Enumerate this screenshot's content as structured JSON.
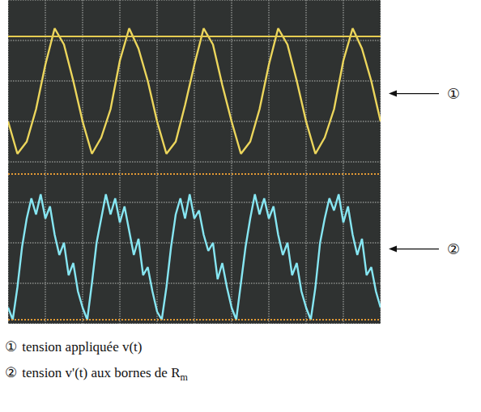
{
  "chart_data": {
    "type": "line",
    "xlim": [
      0,
      10
    ],
    "xticks": [
      0,
      1,
      2,
      3,
      4,
      5,
      6,
      7,
      8,
      9,
      10
    ],
    "ylim": [
      0,
      8
    ],
    "yticks": [
      0,
      1,
      2,
      3,
      4,
      5,
      6,
      7,
      8
    ],
    "grid": true,
    "tick_labels": false,
    "series": [
      {
        "name": "tension appliquée v(t)",
        "color": "#ecd65c",
        "x": [
          0,
          0.25,
          0.5,
          0.75,
          1,
          1.25,
          1.5,
          1.75,
          2,
          2.25,
          2.5,
          2.75,
          3,
          3.25,
          3.5,
          3.75,
          4,
          4.25,
          4.5,
          4.75,
          5,
          5.25,
          5.5,
          5.75,
          6,
          6.25,
          6.5,
          6.75,
          7,
          7.25,
          7.5,
          7.75,
          8,
          8.25,
          8.5,
          8.75,
          9,
          9.25,
          9.5,
          9.75,
          10
        ],
        "values": [
          5.0,
          4.2,
          4.5,
          5.3,
          6.4,
          7.3,
          6.9,
          6.0,
          5.0,
          4.2,
          4.6,
          5.3,
          6.5,
          7.3,
          6.8,
          6.0,
          5.0,
          4.2,
          4.5,
          5.4,
          6.4,
          7.3,
          6.9,
          5.9,
          5.0,
          4.2,
          4.5,
          5.3,
          6.4,
          7.3,
          6.9,
          6.0,
          5.0,
          4.2,
          4.6,
          5.3,
          6.5,
          7.3,
          6.8,
          6.0,
          5.0
        ]
      },
      {
        "name": "tension v'(t) aux bornes de Rm",
        "color": "#86e6f2",
        "x": [
          0,
          0.125,
          0.25,
          0.375,
          0.5,
          0.625,
          0.75,
          0.875,
          1,
          1.125,
          1.25,
          1.375,
          1.5,
          1.625,
          1.75,
          1.875,
          2,
          2.125,
          2.25,
          2.375,
          2.5,
          2.625,
          2.75,
          2.875,
          3,
          3.125,
          3.25,
          3.375,
          3.5,
          3.625,
          3.75,
          3.875,
          4,
          4.125,
          4.25,
          4.375,
          4.5,
          4.625,
          4.75,
          4.875,
          5,
          5.125,
          5.25,
          5.375,
          5.5,
          5.625,
          5.75,
          5.875,
          6,
          6.125,
          6.25,
          6.375,
          6.5,
          6.625,
          6.75,
          6.875,
          7,
          7.125,
          7.25,
          7.375,
          7.5,
          7.625,
          7.75,
          7.875,
          8,
          8.125,
          8.25,
          8.375,
          8.5,
          8.625,
          8.75,
          8.875,
          9,
          9.125,
          9.25,
          9.375,
          9.5,
          9.625,
          9.75,
          9.875,
          10
        ],
        "values": [
          0.4,
          0.1,
          0.9,
          1.9,
          2.6,
          3.1,
          2.7,
          3.2,
          2.6,
          2.9,
          2.2,
          1.7,
          2.0,
          1.2,
          1.5,
          0.8,
          0.4,
          0.1,
          1.0,
          2.0,
          2.6,
          3.2,
          2.7,
          3.1,
          2.5,
          2.9,
          2.3,
          1.7,
          2.1,
          1.2,
          1.4,
          0.8,
          0.3,
          0.1,
          0.9,
          1.9,
          2.7,
          3.1,
          2.6,
          3.2,
          2.6,
          2.8,
          2.2,
          1.8,
          2.0,
          1.1,
          1.5,
          0.9,
          0.4,
          0.1,
          1.0,
          1.9,
          2.6,
          3.2,
          2.7,
          3.1,
          2.6,
          2.9,
          2.2,
          1.7,
          2.0,
          1.2,
          1.5,
          0.8,
          0.4,
          0.1,
          0.9,
          2.0,
          2.6,
          3.1,
          2.8,
          3.2,
          2.5,
          2.9,
          2.2,
          1.7,
          2.1,
          1.2,
          1.4,
          0.8,
          0.4
        ]
      }
    ],
    "reference_lines": [
      {
        "value": 7.1,
        "color": "#e6cc52",
        "line_style": "solid"
      },
      {
        "value": 3.7,
        "color": "#e39a35",
        "line_style": "dotted"
      },
      {
        "value": 0.1,
        "color": "#e39a35",
        "line_style": "dotted"
      }
    ],
    "annotations": [
      {
        "text": "①",
        "series": 0
      },
      {
        "text": "②",
        "series": 1
      }
    ],
    "captions": [
      {
        "marker": "①",
        "text": "tension appliquée v(t)"
      },
      {
        "marker": "②",
        "text": "tension v'(t) aux bornes de R",
        "sub": "m"
      }
    ]
  }
}
